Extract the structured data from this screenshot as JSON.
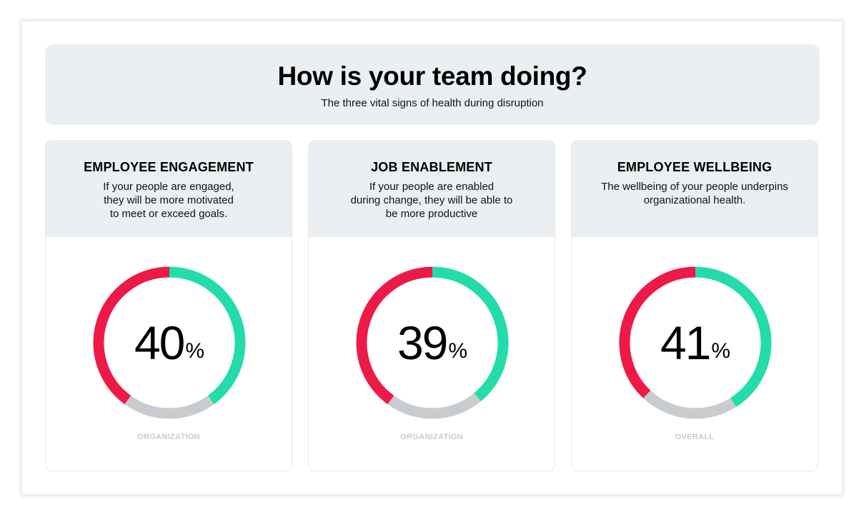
{
  "header": {
    "title": "How is your team doing?",
    "subtitle": "The three vital signs of health during disruption"
  },
  "colors": {
    "positive": "#23dcaa",
    "negative": "#ed1a47",
    "neutral": "#c9cccf",
    "panel": "#ebeff1"
  },
  "cards": [
    {
      "title": "EMPLOYEE ENGAGEMENT",
      "description": "If your people are engaged,\nthey will be more motivated\nto meet or exceed goals.",
      "value": "40",
      "unit": "%",
      "footer": "ORGANIZATION"
    },
    {
      "title": "JOB ENABLEMENT",
      "description": "If your people are enabled\nduring change, they will be able to\nbe more productive",
      "value": "39",
      "unit": "%",
      "footer": "ORGANIZATION"
    },
    {
      "title": "EMPLOYEE WELLBEING",
      "description": "The wellbeing of your people underpins\norganizational health.",
      "value": "41",
      "unit": "%",
      "footer": "OVERALL"
    }
  ],
  "chart_data": [
    {
      "type": "pie",
      "title": "EMPLOYEE ENGAGEMENT",
      "categories": [
        "positive",
        "neutral",
        "negative"
      ],
      "values": [
        40,
        20,
        40
      ],
      "label": "40%",
      "subtitle": "ORGANIZATION"
    },
    {
      "type": "pie",
      "title": "JOB ENABLEMENT",
      "categories": [
        "positive",
        "neutral",
        "negative"
      ],
      "values": [
        39,
        21,
        40
      ],
      "label": "39%",
      "subtitle": "ORGANIZATION"
    },
    {
      "type": "pie",
      "title": "EMPLOYEE WELLBEING",
      "categories": [
        "positive",
        "neutral",
        "negative"
      ],
      "values": [
        41,
        21,
        38
      ],
      "label": "41%",
      "subtitle": "OVERALL"
    }
  ]
}
